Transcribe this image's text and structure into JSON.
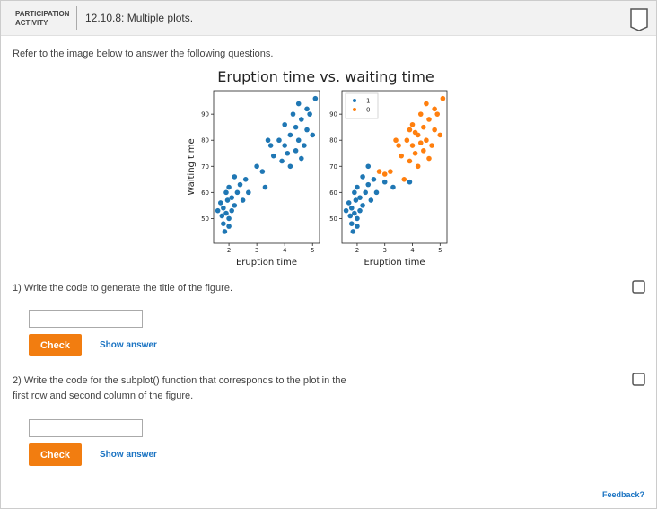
{
  "header": {
    "label_lines": [
      "PARTICIPATION",
      "ACTIVITY"
    ],
    "title": "12.10.8: Multiple plots."
  },
  "instructions": "Refer to the image below to answer the following questions.",
  "figure": {
    "title": "Eruption time vs. waiting time",
    "subplots": [
      {
        "type": "scatter",
        "xlabel": "Eruption time",
        "ylabel": "Waiting time",
        "xlim": [
          1.45,
          5.25
        ],
        "ylim": [
          40.5,
          99
        ],
        "xticks": [
          2,
          3,
          4,
          5
        ],
        "yticks": [
          50,
          60,
          70,
          80,
          90
        ],
        "series": [
          {
            "color": "#1f77b4",
            "x": [
              1.8,
              1.9,
              2.0,
              1.7,
              1.8,
              2.1,
              1.9,
              2.0,
              2.2,
              1.75,
              1.85,
              2.3,
              2.4,
              2.5,
              1.6,
              2.0,
              2.1,
              1.95,
              2.6,
              2.7,
              3.0,
              2.2,
              3.3,
              3.8,
              4.0,
              4.2,
              4.4,
              4.5,
              4.1,
              3.9,
              4.6,
              4.3,
              4.8,
              4.7,
              4.0,
              3.6,
              3.5,
              4.9,
              5.1,
              4.2,
              4.4,
              3.2,
              3.4,
              4.6,
              5.0,
              4.8,
              4.5
            ],
            "y": [
              54,
              52,
              50,
              56,
              48,
              58,
              60,
              62,
              55,
              51,
              45,
              60,
              63,
              57,
              53,
              47,
              53,
              57,
              65,
              60,
              70,
              66,
              62,
              80,
              78,
              82,
              85,
              80,
              75,
              72,
              88,
              90,
              84,
              78,
              86,
              74,
              78,
              90,
              96,
              70,
              76,
              68,
              80,
              73,
              82,
              92,
              94
            ]
          }
        ]
      },
      {
        "type": "scatter",
        "xlabel": "Eruption time",
        "xlim": [
          1.45,
          5.25
        ],
        "ylim": [
          40.5,
          99
        ],
        "xticks": [
          2,
          3,
          4,
          5
        ],
        "yticks": [
          50,
          60,
          70,
          80,
          90
        ],
        "series": [
          {
            "name": "1",
            "color": "#1f77b4",
            "x": [
              1.8,
              1.9,
              2.0,
              1.7,
              1.8,
              2.1,
              1.9,
              2.0,
              2.2,
              1.75,
              1.85,
              2.3,
              2.4,
              2.5,
              1.6,
              2.0,
              2.1,
              1.95,
              2.6,
              2.7,
              3.0,
              2.2,
              3.3,
              3.9,
              2.4
            ],
            "y": [
              54,
              52,
              50,
              56,
              48,
              58,
              60,
              62,
              55,
              51,
              45,
              60,
              63,
              57,
              53,
              47,
              53,
              57,
              65,
              60,
              64,
              66,
              62,
              64,
              70
            ]
          },
          {
            "name": "0",
            "color": "#ff7f0e",
            "x": [
              3.8,
              4.0,
              4.2,
              4.4,
              4.5,
              4.1,
              3.9,
              4.6,
              4.3,
              4.8,
              4.7,
              4.0,
              3.6,
              3.5,
              4.9,
              5.1,
              4.2,
              4.4,
              3.2,
              3.4,
              4.6,
              5.0,
              4.8,
              4.5,
              2.8,
              3.0,
              3.7,
              4.1,
              4.3,
              3.9
            ],
            "y": [
              80,
              78,
              82,
              85,
              80,
              75,
              72,
              88,
              90,
              84,
              78,
              86,
              74,
              78,
              90,
              96,
              70,
              76,
              68,
              80,
              73,
              82,
              92,
              94,
              68,
              67,
              65,
              83,
              79,
              84
            ]
          }
        ]
      }
    ]
  },
  "questions": [
    {
      "text": "1) Write the code to generate the title of the figure.",
      "check": "Check",
      "show_answer": "Show answer"
    },
    {
      "text": "2) Write the code for the subplot() function that corresponds to the plot in the first row and second column of the figure.",
      "check": "Check",
      "show_answer": "Show answer"
    }
  ],
  "feedback": "Feedback?"
}
